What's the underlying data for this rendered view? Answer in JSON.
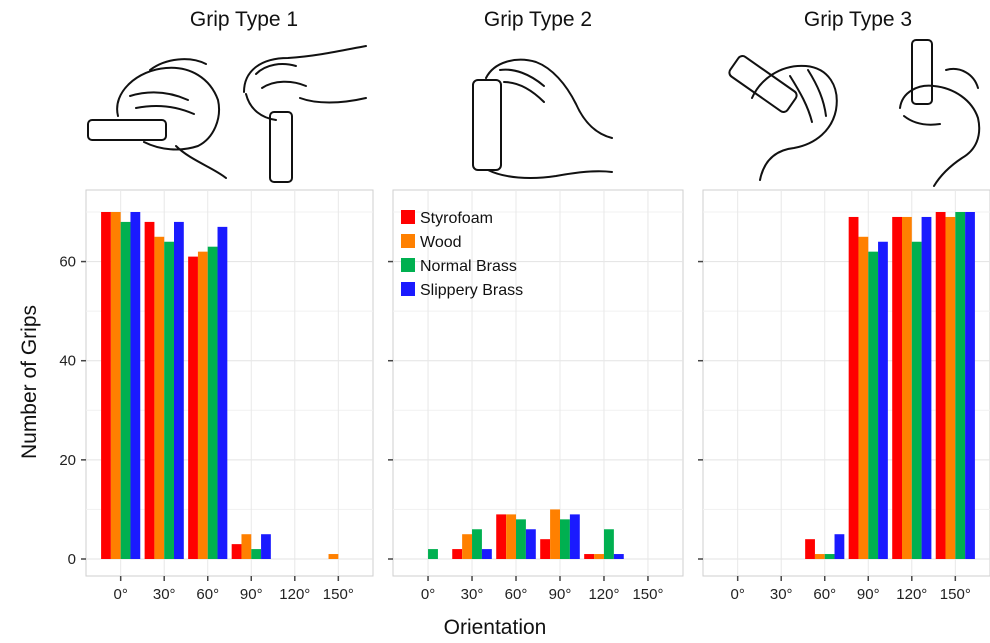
{
  "chart_data": {
    "type": "bar",
    "xlabel": "Orientation",
    "ylabel": "Number of Grips",
    "ylim": [
      0,
      70
    ],
    "yticks": [
      "0",
      "20",
      "40",
      "60"
    ],
    "categories": [
      "0°",
      "30°",
      "60°",
      "90°",
      "120°",
      "150°"
    ],
    "legend": {
      "placement": "top-left",
      "panel": 1
    },
    "grid": true,
    "series_names": [
      "Styrofoam",
      "Wood",
      "Normal Brass",
      "Slippery Brass"
    ],
    "colors": [
      "#ff0000",
      "#ff8000",
      "#00b050",
      "#1a1aff"
    ],
    "panels": [
      {
        "title": "Grip Type 1",
        "series": [
          {
            "name": "Styrofoam",
            "values": [
              70,
              68,
              61,
              3,
              0,
              0
            ]
          },
          {
            "name": "Wood",
            "values": [
              70,
              65,
              62,
              5,
              0,
              1
            ]
          },
          {
            "name": "Normal Brass",
            "values": [
              68,
              64,
              63,
              2,
              0,
              0
            ]
          },
          {
            "name": "Slippery Brass",
            "values": [
              70,
              68,
              67,
              5,
              0,
              0
            ]
          }
        ]
      },
      {
        "title": "Grip Type 2",
        "series": [
          {
            "name": "Styrofoam",
            "values": [
              0,
              2,
              9,
              4,
              1,
              0
            ]
          },
          {
            "name": "Wood",
            "values": [
              0,
              5,
              9,
              10,
              1,
              0
            ]
          },
          {
            "name": "Normal Brass",
            "values": [
              2,
              6,
              8,
              8,
              6,
              0
            ]
          },
          {
            "name": "Slippery Brass",
            "values": [
              0,
              2,
              6,
              9,
              1,
              0
            ]
          }
        ]
      },
      {
        "title": "Grip Type 3",
        "series": [
          {
            "name": "Styrofoam",
            "values": [
              0,
              0,
              4,
              69,
              69,
              70
            ]
          },
          {
            "name": "Wood",
            "values": [
              0,
              0,
              1,
              65,
              69,
              69
            ]
          },
          {
            "name": "Normal Brass",
            "values": [
              0,
              0,
              1,
              62,
              64,
              70
            ]
          },
          {
            "name": "Slippery Brass",
            "values": [
              0,
              0,
              5,
              64,
              69,
              70
            ]
          }
        ]
      }
    ]
  }
}
